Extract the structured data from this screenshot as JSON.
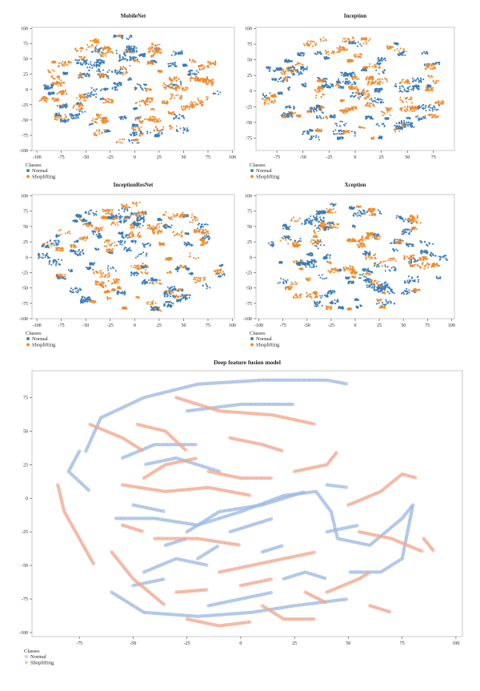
{
  "colors": {
    "normal": "#3b7dba",
    "shoplifting": "#f08a2c",
    "normal_light": "#9fbbe3",
    "shoplifting_light": "#f2a98f",
    "axis": "#444444",
    "frame": "#bbbbbb"
  },
  "legend": {
    "title": "Classes",
    "items": [
      "Normal",
      "Shoplifting"
    ]
  },
  "chart_data": [
    {
      "type": "scatter",
      "title": "MobileNet",
      "xlabel": "",
      "ylabel": "",
      "xlim": [
        -105,
        102
      ],
      "ylim": [
        -100,
        102
      ],
      "xticks": [
        -100,
        -75,
        -50,
        -25,
        0,
        25,
        50,
        75,
        100
      ],
      "yticks": [
        -100,
        -75,
        -50,
        -25,
        0,
        25,
        50,
        75,
        100
      ],
      "series": [
        {
          "name": "Normal"
        },
        {
          "name": "Shoplifting"
        }
      ],
      "legend": "below-left",
      "marker": "filled-dot",
      "seed": 11
    },
    {
      "type": "scatter",
      "title": "Inception",
      "xlabel": "",
      "ylabel": "",
      "xlim": [
        -95,
        95
      ],
      "ylim": [
        -95,
        102
      ],
      "xticks": [
        -75,
        -50,
        -25,
        0,
        25,
        50,
        75
      ],
      "yticks": [
        -75,
        -50,
        -25,
        0,
        25,
        50,
        75,
        100
      ],
      "series": [
        {
          "name": "Normal"
        },
        {
          "name": "Shoplifting"
        }
      ],
      "legend": "below-left",
      "marker": "filled-dot",
      "seed": 23
    },
    {
      "type": "scatter",
      "title": "InceptionResNet",
      "xlabel": "",
      "ylabel": "",
      "xlim": [
        -105,
        102
      ],
      "ylim": [
        -100,
        102
      ],
      "xticks": [
        -100,
        -75,
        -50,
        -25,
        0,
        25,
        50,
        75,
        100
      ],
      "yticks": [
        -100,
        -75,
        -50,
        -25,
        0,
        25,
        50,
        75,
        100
      ],
      "series": [
        {
          "name": "Normal"
        },
        {
          "name": "Shoplifting"
        }
      ],
      "legend": "below-left",
      "marker": "filled-dot",
      "seed": 37
    },
    {
      "type": "scatter",
      "title": "Xception",
      "xlabel": "",
      "ylabel": "",
      "xlim": [
        -103,
        103
      ],
      "ylim": [
        -100,
        102
      ],
      "xticks": [
        -100,
        -75,
        -50,
        -25,
        0,
        25,
        50,
        75,
        100
      ],
      "yticks": [
        -100,
        -75,
        -50,
        -25,
        0,
        25,
        50,
        75,
        100
      ],
      "series": [
        {
          "name": "Normal"
        },
        {
          "name": "Shoplifting"
        }
      ],
      "legend": "below-left",
      "marker": "filled-dot",
      "seed": 53
    },
    {
      "type": "scatter",
      "title": "Deep feature fusion model",
      "xlabel": "",
      "ylabel": "",
      "xlim": [
        -97,
        103
      ],
      "ylim": [
        -103,
        95
      ],
      "xticks": [
        -75,
        -50,
        -25,
        0,
        25,
        50,
        75,
        100
      ],
      "yticks": [
        -100,
        -75,
        -50,
        -25,
        0,
        25,
        50,
        75
      ],
      "series": [
        {
          "name": "Normal",
          "curves": [
            [
              [
                -72,
                35
              ],
              [
                -65,
                60
              ],
              [
                -45,
                75
              ],
              [
                -20,
                85
              ],
              [
                10,
                88
              ],
              [
                40,
                88
              ],
              [
                50,
                85
              ]
            ],
            [
              [
                -75,
                35
              ],
              [
                -80,
                20
              ],
              [
                -70,
                5
              ]
            ],
            [
              [
                -25,
                65
              ],
              [
                0,
                70
              ],
              [
                25,
                70
              ]
            ],
            [
              [
                -55,
                30
              ],
              [
                -40,
                40
              ],
              [
                -20,
                40
              ]
            ],
            [
              [
                -58,
                -15
              ],
              [
                -40,
                -15
              ],
              [
                -20,
                -20
              ],
              [
                0,
                -10
              ],
              [
                20,
                2
              ],
              [
                35,
                5
              ],
              [
                42,
                -10
              ],
              [
                45,
                -30
              ],
              [
                60,
                -35
              ],
              [
                75,
                -15
              ],
              [
                80,
                -5
              ],
              [
                75,
                -45
              ],
              [
                65,
                -55
              ],
              [
                50,
                -55
              ]
            ],
            [
              [
                -25,
                -25
              ],
              [
                -10,
                -10
              ],
              [
                10,
                -5
              ],
              [
                30,
                5
              ]
            ],
            [
              [
                -60,
                -70
              ],
              [
                -45,
                -85
              ],
              [
                -20,
                -88
              ],
              [
                5,
                -85
              ],
              [
                25,
                -80
              ],
              [
                50,
                -75
              ]
            ],
            [
              [
                -45,
                -55
              ],
              [
                -30,
                -45
              ],
              [
                -15,
                -50
              ]
            ],
            [
              [
                -5,
                -25
              ],
              [
                5,
                -20
              ],
              [
                15,
                -15
              ]
            ],
            [
              [
                -50,
                -65
              ],
              [
                -35,
                -60
              ]
            ],
            [
              [
                -20,
                -45
              ],
              [
                -10,
                -35
              ]
            ],
            [
              [
                -15,
                -80
              ],
              [
                0,
                -75
              ],
              [
                15,
                -70
              ]
            ],
            [
              [
                40,
                -25
              ],
              [
                55,
                -20
              ]
            ],
            [
              [
                20,
                -60
              ],
              [
                30,
                -55
              ],
              [
                40,
                -60
              ]
            ],
            [
              [
                -10,
                20
              ],
              [
                -30,
                30
              ],
              [
                -45,
                25
              ]
            ],
            [
              [
                -50,
                -5
              ],
              [
                -35,
                -10
              ]
            ],
            [
              [
                10,
                -40
              ],
              [
                20,
                -35
              ]
            ],
            [
              [
                40,
                10
              ],
              [
                50,
                8
              ]
            ],
            [
              [
                -35,
                -35
              ],
              [
                -25,
                -30
              ]
            ]
          ]
        },
        {
          "name": "Shoplifting",
          "curves": [
            [
              [
                -85,
                10
              ],
              [
                -82,
                -10
              ],
              [
                -75,
                -30
              ],
              [
                -68,
                -50
              ]
            ],
            [
              [
                -30,
                75
              ],
              [
                -10,
                65
              ],
              [
                15,
                62
              ],
              [
                35,
                55
              ]
            ],
            [
              [
                -48,
                55
              ],
              [
                -35,
                50
              ],
              [
                -25,
                35
              ]
            ],
            [
              [
                -70,
                55
              ],
              [
                -55,
                45
              ],
              [
                -45,
                35
              ]
            ],
            [
              [
                -55,
                10
              ],
              [
                -35,
                5
              ],
              [
                -15,
                8
              ],
              [
                5,
                2
              ]
            ],
            [
              [
                -40,
                -30
              ],
              [
                -20,
                -30
              ],
              [
                0,
                -35
              ]
            ],
            [
              [
                -60,
                -40
              ],
              [
                -50,
                -60
              ],
              [
                -35,
                -80
              ]
            ],
            [
              [
                -10,
                -55
              ],
              [
                5,
                -50
              ],
              [
                20,
                -45
              ],
              [
                35,
                -40
              ]
            ],
            [
              [
                10,
                -80
              ],
              [
                20,
                -90
              ],
              [
                35,
                -90
              ]
            ],
            [
              [
                -25,
                -90
              ],
              [
                -10,
                -95
              ],
              [
                5,
                -92
              ]
            ],
            [
              [
                50,
                -5
              ],
              [
                65,
                5
              ],
              [
                75,
                18
              ],
              [
                82,
                15
              ]
            ],
            [
              [
                55,
                -25
              ],
              [
                70,
                -30
              ],
              [
                85,
                -40
              ]
            ],
            [
              [
                25,
                20
              ],
              [
                40,
                25
              ],
              [
                45,
                35
              ]
            ],
            [
              [
                -15,
                20
              ],
              [
                0,
                15
              ],
              [
                15,
                15
              ]
            ],
            [
              [
                40,
                -70
              ],
              [
                55,
                -60
              ],
              [
                60,
                -55
              ]
            ],
            [
              [
                -45,
                15
              ],
              [
                -35,
                25
              ],
              [
                -20,
                30
              ]
            ],
            [
              [
                -5,
                45
              ],
              [
                10,
                40
              ],
              [
                20,
                35
              ]
            ],
            [
              [
                0,
                -65
              ],
              [
                15,
                -60
              ]
            ],
            [
              [
                30,
                -70
              ],
              [
                40,
                -78
              ]
            ],
            [
              [
                -55,
                -20
              ],
              [
                -45,
                -25
              ]
            ],
            [
              [
                -30,
                -70
              ],
              [
                -15,
                -68
              ]
            ],
            [
              [
                85,
                -30
              ],
              [
                90,
                -40
              ]
            ],
            [
              [
                60,
                -80
              ],
              [
                70,
                -85
              ]
            ]
          ]
        }
      ],
      "legend": "below-left",
      "marker": "hollow-dot"
    }
  ]
}
